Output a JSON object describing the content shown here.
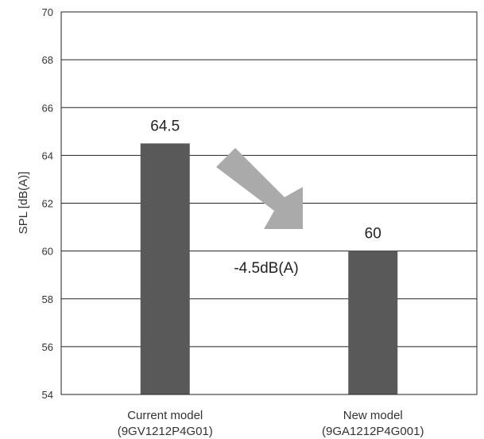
{
  "chart_data": {
    "type": "bar",
    "categories": [
      {
        "line1": "Current model",
        "line2": "(9GV1212P4G01)"
      },
      {
        "line1": "New model",
        "line2": "(9GA1212P4G001)"
      }
    ],
    "values": [
      64.5,
      60
    ],
    "value_labels": [
      "64.5",
      "60"
    ],
    "ylabel": "SPL [dB(A)]",
    "ylim": [
      54,
      70
    ],
    "yticks": [
      54,
      56,
      58,
      60,
      62,
      64,
      66,
      68,
      70
    ],
    "grid": true,
    "bar_color": "#595959",
    "arrow_color": "#aaaaaa",
    "annotation": "-4.5dB(A)"
  }
}
